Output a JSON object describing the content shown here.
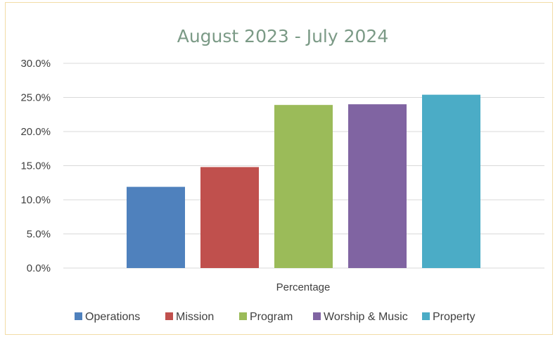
{
  "chart_data": {
    "type": "bar",
    "title": "August 2023 - July 2024",
    "categories": [
      "Percentage"
    ],
    "series": [
      {
        "name": "Operations",
        "values": [
          11.9
        ],
        "color": "#4f81bd"
      },
      {
        "name": "Mission",
        "values": [
          14.8
        ],
        "color": "#c0504d"
      },
      {
        "name": "Program",
        "values": [
          23.9
        ],
        "color": "#9bbb59"
      },
      {
        "name": "Worship & Music",
        "values": [
          24.0
        ],
        "color": "#8064a2"
      },
      {
        "name": "Property",
        "values": [
          25.4
        ],
        "color": "#4bacc6"
      }
    ],
    "y_ticks": [
      "0.0%",
      "5.0%",
      "10.0%",
      "15.0%",
      "20.0%",
      "25.0%",
      "30.0%"
    ],
    "ylim": [
      0,
      30
    ],
    "grid": true,
    "legend": "bottom",
    "xlabel": "",
    "ylabel": ""
  }
}
